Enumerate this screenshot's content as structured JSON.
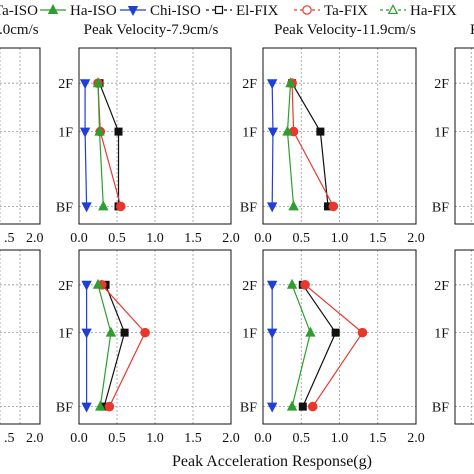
{
  "legend": {
    "entries": [
      {
        "label": "Ta-ISO",
        "color": "#e8382e",
        "marker": "circle",
        "dashed": false
      },
      {
        "label": "Ha-ISO",
        "color": "#2e9e2e",
        "marker": "triangle-up",
        "dashed": false
      },
      {
        "label": "Chi-ISO",
        "color": "#1f3fd6",
        "marker": "triangle-down",
        "dashed": false
      },
      {
        "label": "El-FIX",
        "color": "#111111",
        "marker": "square-open",
        "dashed": true
      },
      {
        "label": "Ta-FIX",
        "color": "#e8382e",
        "marker": "circle-open",
        "dashed": true
      },
      {
        "label": "Ha-FIX",
        "color": "#2e9e2e",
        "marker": "triangle-open",
        "dashed": true
      }
    ]
  },
  "column_titles": [
    ".0cm/s",
    "Peak Velocity-7.9cm/s",
    "Peak Velocity-11.9cm/s",
    "Peak"
  ],
  "xlabel": "Peak Acceleration Response(g)",
  "x_ticks": [
    "0.0",
    "0.5",
    "1.0",
    "1.5",
    "2.0"
  ],
  "partial_x_ticks": [
    ".5",
    "2.0"
  ],
  "y_ticks": [
    "BF",
    "1F",
    "2F"
  ],
  "chart_data": [
    {
      "type": "line",
      "row": "top",
      "column": "Peak Velocity-7.9cm/s",
      "xlim": [
        0,
        2
      ],
      "y_levels": [
        "BF",
        "1F",
        "2F"
      ],
      "grid": true,
      "series": [
        {
          "name": "El-FIX",
          "x": [
            0.52,
            0.52,
            0.27
          ]
        },
        {
          "name": "Ta-ISO",
          "x": [
            0.55,
            0.28,
            0.25
          ]
        },
        {
          "name": "Ha-ISO",
          "x": [
            0.32,
            0.27,
            0.25
          ]
        },
        {
          "name": "Chi-ISO",
          "x": [
            0.1,
            0.08,
            0.08
          ]
        }
      ]
    },
    {
      "type": "line",
      "row": "top",
      "column": "Peak Velocity-11.9cm/s",
      "xlim": [
        0,
        2
      ],
      "y_levels": [
        "BF",
        "1F",
        "2F"
      ],
      "grid": true,
      "series": [
        {
          "name": "El-FIX",
          "x": [
            0.85,
            0.75,
            0.38
          ]
        },
        {
          "name": "Ta-ISO",
          "x": [
            0.92,
            0.4,
            0.38
          ]
        },
        {
          "name": "Ha-ISO",
          "x": [
            0.4,
            0.32,
            0.36
          ]
        },
        {
          "name": "Chi-ISO",
          "x": [
            0.12,
            0.13,
            0.12
          ]
        }
      ]
    },
    {
      "type": "line",
      "row": "bottom",
      "column": "Peak Velocity-7.9cm/s",
      "xlim": [
        0,
        2
      ],
      "y_levels": [
        "BF",
        "1F",
        "2F"
      ],
      "grid": true,
      "series": [
        {
          "name": "El-FIX",
          "x": [
            0.33,
            0.6,
            0.35
          ]
        },
        {
          "name": "Ta-ISO",
          "x": [
            0.4,
            0.87,
            0.3
          ]
        },
        {
          "name": "Ha-ISO",
          "x": [
            0.28,
            0.42,
            0.25
          ]
        },
        {
          "name": "Chi-ISO",
          "x": [
            0.1,
            0.1,
            0.1
          ]
        }
      ]
    },
    {
      "type": "line",
      "row": "bottom",
      "column": "Peak Velocity-11.9cm/s",
      "xlim": [
        0,
        2
      ],
      "y_levels": [
        "BF",
        "1F",
        "2F"
      ],
      "grid": true,
      "series": [
        {
          "name": "El-FIX",
          "x": [
            0.52,
            0.95,
            0.52
          ]
        },
        {
          "name": "Ta-ISO",
          "x": [
            0.65,
            1.3,
            0.55
          ]
        },
        {
          "name": "Ha-ISO",
          "x": [
            0.38,
            0.62,
            0.38
          ]
        },
        {
          "name": "Chi-ISO",
          "x": [
            0.12,
            0.12,
            0.12
          ]
        }
      ]
    }
  ]
}
